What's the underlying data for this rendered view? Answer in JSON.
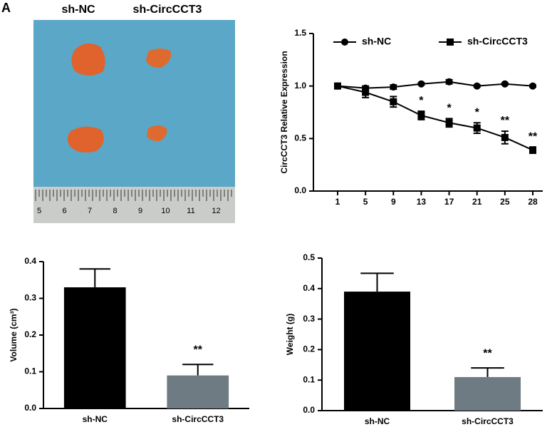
{
  "panel_label": "A",
  "photo": {
    "labels": [
      "sh-NC",
      "sh-CircCCT3"
    ],
    "ruler": [
      "5",
      "6",
      "7",
      "8",
      "9",
      "10",
      "11",
      "12"
    ]
  },
  "chart_data": [
    {
      "type": "line",
      "y_label": "CircCCT3 Relative Expression",
      "categories": [
        "1",
        "5",
        "9",
        "13",
        "17",
        "21",
        "25",
        "28"
      ],
      "series": [
        {
          "name": "sh-NC",
          "color": "#000000",
          "marker": "circle",
          "values": [
            1.0,
            0.98,
            0.99,
            1.02,
            1.04,
            1.0,
            1.02,
            1.0
          ],
          "errors": [
            0.01,
            0.02,
            0.02,
            0.01,
            0.02,
            0.01,
            0.01,
            0.01
          ]
        },
        {
          "name": "sh-CircCCT3",
          "color": "#000000",
          "marker": "square",
          "values": [
            1.0,
            0.94,
            0.85,
            0.72,
            0.65,
            0.6,
            0.51,
            0.39
          ],
          "errors": [
            0.01,
            0.05,
            0.05,
            0.04,
            0.04,
            0.05,
            0.06,
            0.03
          ]
        }
      ],
      "annotations": [
        null,
        null,
        null,
        "*",
        "*",
        "*",
        "**",
        "**"
      ],
      "ylim": [
        0,
        1.5
      ],
      "yticks": [
        {
          "value": 0,
          "label": "0.0"
        },
        0.5,
        {
          "value": 1,
          "label": "1.0"
        },
        1.5
      ],
      "legend": "top"
    },
    {
      "type": "bar",
      "y_label": "Volume (cm³)",
      "categories": [
        "sh-NC",
        "sh-CircCCT3"
      ],
      "values": [
        0.33,
        0.09
      ],
      "errors": [
        0.05,
        0.03
      ],
      "colors": [
        "#000000",
        "#6e7b83"
      ],
      "annotations": [
        null,
        "**"
      ],
      "ylim": [
        0,
        0.4
      ],
      "yticks": [
        {
          "value": 0,
          "label": "0.0"
        },
        0.1,
        0.2,
        0.3,
        0.4
      ]
    },
    {
      "type": "bar",
      "y_label": "Weight (g)",
      "categories": [
        "sh-NC",
        "sh-CircCCT3"
      ],
      "values": [
        0.39,
        0.11
      ],
      "errors": [
        0.06,
        0.03
      ],
      "colors": [
        "#000000",
        "#6e7b83"
      ],
      "annotations": [
        null,
        "**"
      ],
      "ylim": [
        0,
        0.5
      ],
      "yticks": [
        {
          "value": 0,
          "label": "0.0"
        },
        0.1,
        0.2,
        0.3,
        0.4,
        0.5
      ]
    }
  ]
}
